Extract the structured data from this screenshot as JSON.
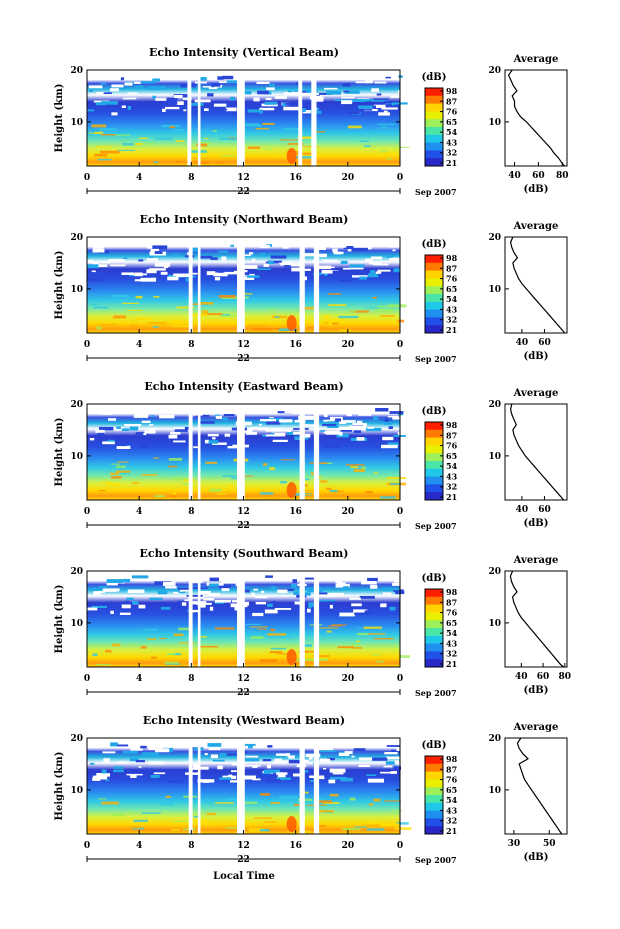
{
  "figure": {
    "xlabel": "Local Time",
    "date_day": "22",
    "date_suffix": "Sep 2007",
    "colorbar_unit": "(dB)",
    "colorbar_ticks": [
      "98",
      "87",
      "76",
      "65",
      "54",
      "43",
      "32",
      "21"
    ],
    "colorbar_colors": [
      "#ff2000",
      "#ff7a00",
      "#ffd400",
      "#e8f000",
      "#9ef05a",
      "#4ae6a8",
      "#20c8e8",
      "#2090f0",
      "#2050e8",
      "#2828c8"
    ],
    "avg_title": "Average",
    "avg_xlabel": "(dB)"
  },
  "chart_data": [
    {
      "type": "heatmap",
      "title": "Echo Intensity (Vertical Beam)",
      "ylabel": "Height (km)",
      "x_ticks": [
        "0",
        "4",
        "8",
        "12",
        "16",
        "20",
        "0"
      ],
      "y_ticks": [
        "20",
        "10"
      ],
      "xlim": [
        0,
        24
      ],
      "ylim": [
        1.5,
        20
      ],
      "missing_intervals": [
        [
          7.7,
          8.0
        ],
        [
          8.5,
          8.7
        ],
        [
          11.5,
          12.1
        ],
        [
          16.2,
          16.5
        ],
        [
          17.2,
          17.6
        ]
      ],
      "profile": {
        "title": "Average",
        "xlabel": "(dB)",
        "x_ticks": [
          "40",
          "60",
          "80"
        ],
        "y_ticks": [
          "20",
          "10"
        ],
        "xlim": [
          32,
          84
        ],
        "height": [
          1.5,
          2,
          3,
          4,
          5,
          6,
          7,
          8,
          9,
          10,
          11,
          12,
          13,
          14,
          15,
          16,
          17,
          18,
          19,
          20
        ],
        "db": [
          82,
          80,
          77,
          73,
          70,
          66,
          62,
          58,
          54,
          50,
          45,
          42,
          40,
          40,
          38,
          42,
          39,
          37,
          35,
          38
        ]
      }
    },
    {
      "type": "heatmap",
      "title": "Echo Intensity (Northward Beam)",
      "ylabel": "Height (km)",
      "x_ticks": [
        "0",
        "4",
        "8",
        "12",
        "16",
        "20",
        "0"
      ],
      "y_ticks": [
        "20",
        "10"
      ],
      "xlim": [
        0,
        24
      ],
      "ylim": [
        1.5,
        20
      ],
      "missing_intervals": [
        [
          7.8,
          8.1
        ],
        [
          8.5,
          8.7
        ],
        [
          11.5,
          12.1
        ],
        [
          16.3,
          16.7
        ],
        [
          17.4,
          17.8
        ]
      ],
      "profile": {
        "title": "Average",
        "xlabel": "(dB)",
        "x_ticks": [
          "40",
          "60"
        ],
        "y_ticks": [
          "20",
          "10"
        ],
        "xlim": [
          25,
          80
        ],
        "height": [
          1.5,
          2,
          3,
          4,
          5,
          6,
          7,
          8,
          9,
          10,
          11,
          12,
          13,
          14,
          15,
          16,
          17,
          18,
          19,
          20
        ],
        "db": [
          78,
          76,
          72,
          68,
          64,
          60,
          56,
          52,
          48,
          44,
          40,
          37,
          35,
          33,
          32,
          36,
          33,
          31,
          30,
          32
        ]
      }
    },
    {
      "type": "heatmap",
      "title": "Echo Intensity (Eastward Beam)",
      "ylabel": "Height (km)",
      "x_ticks": [
        "0",
        "4",
        "8",
        "12",
        "16",
        "20",
        "0"
      ],
      "y_ticks": [
        "20",
        "10"
      ],
      "xlim": [
        0,
        24
      ],
      "ylim": [
        1.5,
        20
      ],
      "missing_intervals": [
        [
          7.8,
          8.1
        ],
        [
          8.5,
          8.7
        ],
        [
          11.5,
          12.1
        ],
        [
          16.3,
          16.7
        ],
        [
          17.4,
          17.8
        ]
      ],
      "profile": {
        "title": "Average",
        "xlabel": "(dB)",
        "x_ticks": [
          "40",
          "60"
        ],
        "y_ticks": [
          "20",
          "10"
        ],
        "xlim": [
          25,
          80
        ],
        "height": [
          1.5,
          2,
          3,
          4,
          5,
          6,
          7,
          8,
          9,
          10,
          11,
          12,
          13,
          14,
          15,
          16,
          17,
          18,
          19,
          20
        ],
        "db": [
          77,
          75,
          71,
          67,
          63,
          59,
          55,
          51,
          47,
          43,
          40,
          37,
          35,
          33,
          32,
          35,
          33,
          31,
          30,
          31
        ]
      }
    },
    {
      "type": "heatmap",
      "title": "Echo Intensity (Southward Beam)",
      "ylabel": "Height (km)",
      "x_ticks": [
        "0",
        "4",
        "8",
        "12",
        "16",
        "20",
        "0"
      ],
      "y_ticks": [
        "20",
        "10"
      ],
      "xlim": [
        0,
        24
      ],
      "ylim": [
        1.5,
        20
      ],
      "missing_intervals": [
        [
          7.8,
          8.1
        ],
        [
          8.5,
          8.7
        ],
        [
          11.5,
          12.1
        ],
        [
          16.3,
          16.7
        ],
        [
          17.4,
          17.8
        ]
      ],
      "profile": {
        "title": "Average",
        "xlabel": "(dB)",
        "x_ticks": [
          "40",
          "60",
          "80"
        ],
        "y_ticks": [
          "20",
          "10"
        ],
        "xlim": [
          25,
          82
        ],
        "height": [
          1.5,
          2,
          3,
          4,
          5,
          6,
          7,
          8,
          9,
          10,
          11,
          12,
          13,
          14,
          15,
          16,
          17,
          18,
          19,
          20
        ],
        "db": [
          79,
          76,
          72,
          68,
          64,
          60,
          56,
          52,
          48,
          44,
          40,
          37,
          35,
          33,
          32,
          36,
          33,
          31,
          30,
          32
        ]
      }
    },
    {
      "type": "heatmap",
      "title": "Echo Intensity (Westward Beam)",
      "ylabel": "Height (km)",
      "x_ticks": [
        "0",
        "4",
        "8",
        "12",
        "16",
        "20",
        "0"
      ],
      "y_ticks": [
        "20",
        "10"
      ],
      "xlim": [
        0,
        24
      ],
      "ylim": [
        1.5,
        20
      ],
      "missing_intervals": [
        [
          7.8,
          8.1
        ],
        [
          8.5,
          8.7
        ],
        [
          11.5,
          12.1
        ],
        [
          16.3,
          16.7
        ],
        [
          17.4,
          17.8
        ]
      ],
      "profile": {
        "title": "Average",
        "xlabel": "(dB)",
        "x_ticks": [
          "30",
          "50"
        ],
        "y_ticks": [
          "20",
          "10"
        ],
        "xlim": [
          25,
          60
        ],
        "height": [
          1.5,
          2,
          3,
          4,
          5,
          6,
          7,
          8,
          9,
          10,
          11,
          12,
          13,
          14,
          15,
          16,
          17,
          18,
          19,
          20
        ],
        "db": [
          57,
          56,
          54,
          52,
          50,
          48,
          46,
          44,
          42,
          40,
          38,
          36,
          35,
          34,
          33,
          38,
          35,
          33,
          32,
          34
        ]
      }
    }
  ]
}
